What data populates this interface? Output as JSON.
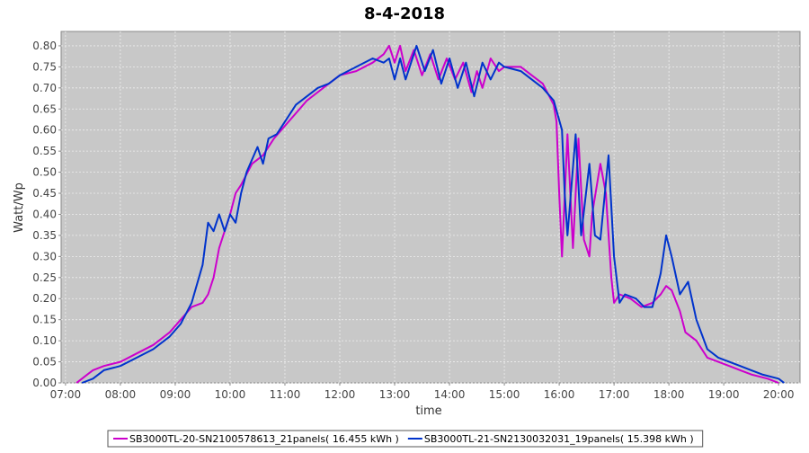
{
  "chart_data": {
    "type": "line",
    "title": "8-4-2018",
    "x_label": "time",
    "y_label": "Watt/Wp",
    "xlim": [
      6.92,
      20.39
    ],
    "ylim": [
      0,
      0.834
    ],
    "grid": true,
    "xticks": [
      {
        "value": 7,
        "label": "07:00"
      },
      {
        "value": 8,
        "label": "08:00"
      },
      {
        "value": 9,
        "label": "09:00"
      },
      {
        "value": 10,
        "label": "10:00"
      },
      {
        "value": 11,
        "label": "11:00"
      },
      {
        "value": 12,
        "label": "12:00"
      },
      {
        "value": 13,
        "label": "13:00"
      },
      {
        "value": 14,
        "label": "14:00"
      },
      {
        "value": 15,
        "label": "15:00"
      },
      {
        "value": 16,
        "label": "16:00"
      },
      {
        "value": 17,
        "label": "17:00"
      },
      {
        "value": 18,
        "label": "18:00"
      },
      {
        "value": 19,
        "label": "19:00"
      },
      {
        "value": 20,
        "label": "20:00"
      }
    ],
    "yticks": [
      {
        "value": 0,
        "label": "0.00"
      },
      {
        "value": 0.05,
        "label": "0.05"
      },
      {
        "value": 0.1,
        "label": "0.10"
      },
      {
        "value": 0.15,
        "label": "0.15"
      },
      {
        "value": 0.2,
        "label": "0.20"
      },
      {
        "value": 0.25,
        "label": "0.25"
      },
      {
        "value": 0.3,
        "label": "0.30"
      },
      {
        "value": 0.35,
        "label": "0.35"
      },
      {
        "value": 0.4,
        "label": "0.40"
      },
      {
        "value": 0.45,
        "label": "0.45"
      },
      {
        "value": 0.5,
        "label": "0.50"
      },
      {
        "value": 0.55,
        "label": "0.55"
      },
      {
        "value": 0.6,
        "label": "0.60"
      },
      {
        "value": 0.65,
        "label": "0.65"
      },
      {
        "value": 0.7,
        "label": "0.70"
      },
      {
        "value": 0.75,
        "label": "0.75"
      },
      {
        "value": 0.8,
        "label": "0.80"
      }
    ],
    "series": [
      {
        "name": "SB3000TL-20-SN2100578613_21panels( 16.455 kWh )",
        "color": "#cc00cc",
        "x": [
          7.2,
          7.3,
          7.4,
          7.5,
          7.7,
          8.0,
          8.3,
          8.6,
          8.9,
          9.1,
          9.3,
          9.5,
          9.6,
          9.7,
          9.8,
          9.9,
          10.0,
          10.1,
          10.2,
          10.4,
          10.6,
          10.8,
          11.0,
          11.2,
          11.4,
          11.6,
          11.8,
          12.0,
          12.3,
          12.6,
          12.8,
          12.9,
          13.0,
          13.1,
          13.2,
          13.35,
          13.5,
          13.65,
          13.8,
          13.95,
          14.1,
          14.25,
          14.4,
          14.5,
          14.6,
          14.75,
          14.9,
          15.0,
          15.3,
          15.5,
          15.7,
          15.9,
          15.95,
          16.0,
          16.05,
          16.15,
          16.25,
          16.35,
          16.45,
          16.55,
          16.6,
          16.75,
          16.85,
          16.95,
          17.0,
          17.1,
          17.3,
          17.5,
          17.7,
          17.85,
          17.95,
          18.05,
          18.2,
          18.3,
          18.5,
          18.7,
          18.9,
          19.1,
          19.3,
          19.5,
          19.8,
          20.0
        ],
        "values": [
          0,
          0.01,
          0.02,
          0.03,
          0.04,
          0.05,
          0.07,
          0.09,
          0.12,
          0.15,
          0.18,
          0.19,
          0.21,
          0.25,
          0.32,
          0.36,
          0.4,
          0.45,
          0.47,
          0.52,
          0.54,
          0.58,
          0.61,
          0.64,
          0.67,
          0.69,
          0.71,
          0.73,
          0.74,
          0.76,
          0.78,
          0.8,
          0.76,
          0.8,
          0.74,
          0.79,
          0.73,
          0.78,
          0.72,
          0.77,
          0.72,
          0.76,
          0.69,
          0.74,
          0.7,
          0.77,
          0.74,
          0.75,
          0.75,
          0.73,
          0.71,
          0.66,
          0.62,
          0.45,
          0.3,
          0.59,
          0.32,
          0.58,
          0.34,
          0.3,
          0.4,
          0.52,
          0.45,
          0.25,
          0.19,
          0.21,
          0.2,
          0.18,
          0.19,
          0.21,
          0.23,
          0.22,
          0.17,
          0.12,
          0.1,
          0.06,
          0.05,
          0.04,
          0.03,
          0.02,
          0.01,
          0
        ]
      },
      {
        "name": "SB3000TL-21-SN2130032031_19panels( 15.398 kWh )",
        "color": "#0033cc",
        "x": [
          7.3,
          7.5,
          7.7,
          8.0,
          8.3,
          8.6,
          8.9,
          9.1,
          9.3,
          9.5,
          9.6,
          9.7,
          9.8,
          9.9,
          10.0,
          10.1,
          10.2,
          10.3,
          10.4,
          10.5,
          10.6,
          10.7,
          10.85,
          11.0,
          11.2,
          11.4,
          11.6,
          11.8,
          12.0,
          12.3,
          12.6,
          12.8,
          12.9,
          13.0,
          13.1,
          13.2,
          13.4,
          13.55,
          13.7,
          13.85,
          14.0,
          14.15,
          14.3,
          14.45,
          14.6,
          14.75,
          14.9,
          15.0,
          15.3,
          15.5,
          15.7,
          15.9,
          16.05,
          16.1,
          16.15,
          16.3,
          16.4,
          16.55,
          16.65,
          16.75,
          16.9,
          17.0,
          17.1,
          17.2,
          17.4,
          17.55,
          17.7,
          17.85,
          17.95,
          18.05,
          18.2,
          18.35,
          18.5,
          18.7,
          18.9,
          19.1,
          19.3,
          19.5,
          19.7,
          20.0,
          20.1
        ],
        "values": [
          0,
          0.01,
          0.03,
          0.04,
          0.06,
          0.08,
          0.11,
          0.14,
          0.19,
          0.28,
          0.38,
          0.36,
          0.4,
          0.36,
          0.4,
          0.38,
          0.45,
          0.5,
          0.53,
          0.56,
          0.52,
          0.58,
          0.59,
          0.62,
          0.66,
          0.68,
          0.7,
          0.71,
          0.73,
          0.75,
          0.77,
          0.76,
          0.77,
          0.72,
          0.77,
          0.72,
          0.8,
          0.74,
          0.79,
          0.71,
          0.77,
          0.7,
          0.76,
          0.68,
          0.76,
          0.72,
          0.76,
          0.75,
          0.74,
          0.72,
          0.7,
          0.67,
          0.6,
          0.45,
          0.35,
          0.59,
          0.35,
          0.52,
          0.35,
          0.34,
          0.54,
          0.3,
          0.19,
          0.21,
          0.2,
          0.18,
          0.18,
          0.26,
          0.35,
          0.3,
          0.21,
          0.24,
          0.15,
          0.08,
          0.06,
          0.05,
          0.04,
          0.03,
          0.02,
          0.01,
          0
        ]
      }
    ]
  }
}
